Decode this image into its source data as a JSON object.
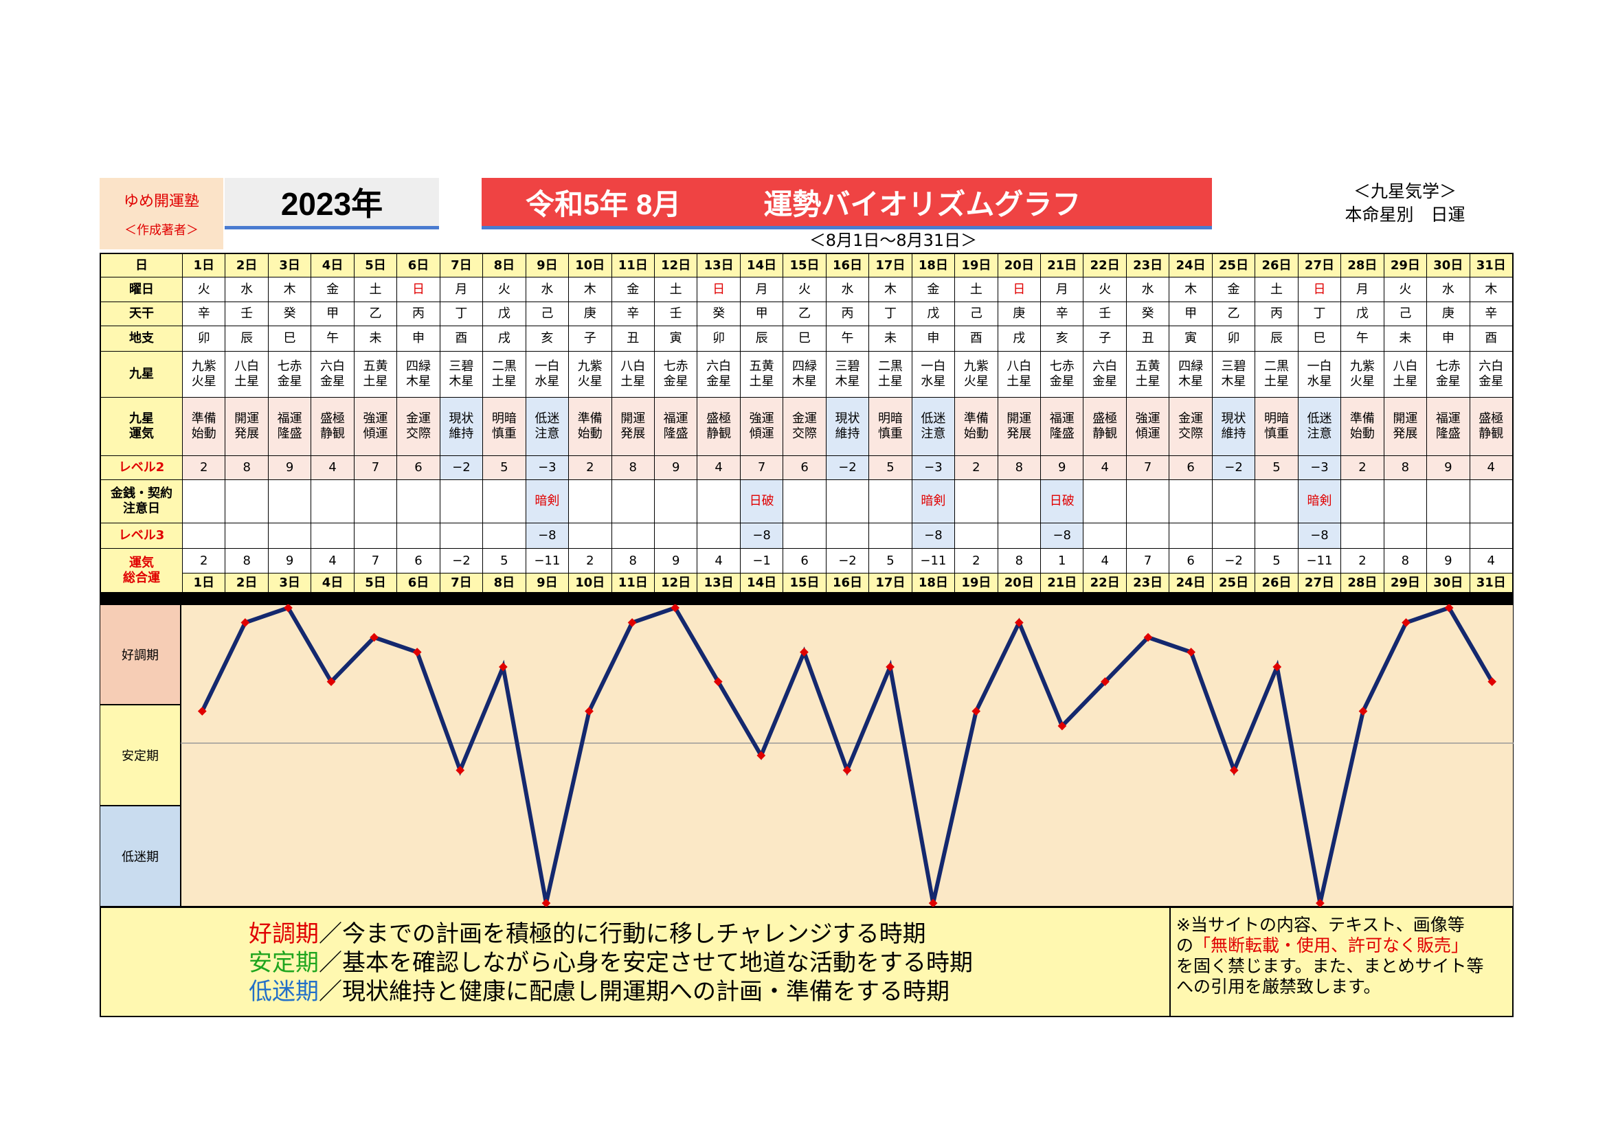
{
  "author": {
    "name": "ゆめ開運塾",
    "role": "＜作成著者＞"
  },
  "year": "2023年",
  "title": {
    "era": "令和5年 8月",
    "main": "運勢バイオリズムグラフ"
  },
  "range": "＜8月1日〜8月31日＞",
  "topright": {
    "line1": "＜九星気学＞",
    "line2": "本命星別　日運"
  },
  "labels": {
    "day": "日",
    "weekday": "曜日",
    "tenkan": "天干",
    "chishi": "地支",
    "kyusei": "九星",
    "unki": "九星<br>運気",
    "level2": "レベル2",
    "money": "金銭・契約<br>注意日",
    "level3": "レベル3",
    "total": "運気<br>総合運"
  },
  "days": [
    "1日",
    "2日",
    "3日",
    "4日",
    "5日",
    "6日",
    "7日",
    "8日",
    "9日",
    "10日",
    "11日",
    "12日",
    "13日",
    "14日",
    "15日",
    "16日",
    "17日",
    "18日",
    "19日",
    "20日",
    "21日",
    "22日",
    "23日",
    "24日",
    "25日",
    "26日",
    "27日",
    "28日",
    "29日",
    "30日",
    "31日"
  ],
  "weekdays": [
    "火",
    "水",
    "木",
    "金",
    "土",
    "日",
    "月",
    "火",
    "水",
    "木",
    "金",
    "土",
    "日",
    "月",
    "火",
    "水",
    "木",
    "金",
    "土",
    "日",
    "月",
    "火",
    "水",
    "木",
    "金",
    "土",
    "日",
    "月",
    "火",
    "水",
    "木"
  ],
  "tenkan": [
    "辛",
    "壬",
    "癸",
    "甲",
    "乙",
    "丙",
    "丁",
    "戊",
    "己",
    "庚",
    "辛",
    "壬",
    "癸",
    "甲",
    "乙",
    "丙",
    "丁",
    "戊",
    "己",
    "庚",
    "辛",
    "壬",
    "癸",
    "甲",
    "乙",
    "丙",
    "丁",
    "戊",
    "己",
    "庚",
    "辛"
  ],
  "chishi": [
    "卯",
    "辰",
    "巳",
    "午",
    "未",
    "申",
    "酉",
    "戌",
    "亥",
    "子",
    "丑",
    "寅",
    "卯",
    "辰",
    "巳",
    "午",
    "未",
    "申",
    "酉",
    "戌",
    "亥",
    "子",
    "丑",
    "寅",
    "卯",
    "辰",
    "巳",
    "午",
    "未",
    "申",
    "酉"
  ],
  "kyusei": [
    "九紫|火星",
    "八白|土星",
    "七赤|金星",
    "六白|金星",
    "五黄|土星",
    "四緑|木星",
    "三碧|木星",
    "二黒|土星",
    "一白|水星",
    "九紫|火星",
    "八白|土星",
    "七赤|金星",
    "六白|金星",
    "五黄|土星",
    "四緑|木星",
    "三碧|木星",
    "二黒|土星",
    "一白|水星",
    "九紫|火星",
    "八白|土星",
    "七赤|金星",
    "六白|金星",
    "五黄|土星",
    "四緑|木星",
    "三碧|木星",
    "二黒|土星",
    "一白|水星",
    "九紫|火星",
    "八白|土星",
    "七赤|金星",
    "六白|金星"
  ],
  "unki": [
    "準備|始動",
    "開運|発展",
    "福運|隆盛",
    "盛極|静観",
    "強運|傾運",
    "金運|交際",
    "現状|維持",
    "明暗|慎重",
    "低迷|注意",
    "準備|始動",
    "開運|発展",
    "福運|隆盛",
    "盛極|静観",
    "強運|傾運",
    "金運|交際",
    "現状|維持",
    "明暗|慎重",
    "低迷|注意",
    "準備|始動",
    "開運|発展",
    "福運|隆盛",
    "盛極|静観",
    "強運|傾運",
    "金運|交際",
    "現状|維持",
    "明暗|慎重",
    "低迷|注意",
    "準備|始動",
    "開運|発展",
    "福運|隆盛",
    "盛極|静観"
  ],
  "level2": [
    "2",
    "8",
    "9",
    "4",
    "7",
    "6",
    "−2",
    "5",
    "−3",
    "2",
    "8",
    "9",
    "4",
    "7",
    "6",
    "−2",
    "5",
    "−3",
    "2",
    "8",
    "9",
    "4",
    "7",
    "6",
    "−2",
    "5",
    "−3",
    "2",
    "8",
    "9",
    "4"
  ],
  "money": [
    "",
    "",
    "",
    "",
    "",
    "",
    "",
    "",
    "暗剣",
    "",
    "",
    "",
    "",
    "日破",
    "",
    "",
    "",
    "暗剣",
    "",
    "",
    "日破",
    "",
    "",
    "",
    "",
    "",
    "暗剣",
    "",
    "",
    "",
    ""
  ],
  "level3": [
    "",
    "",
    "",
    "",
    "",
    "",
    "",
    "",
    "−8",
    "",
    "",
    "",
    "",
    "−8",
    "",
    "",
    "",
    "−8",
    "",
    "",
    "−8",
    "",
    "",
    "",
    "",
    "",
    "−8",
    "",
    "",
    "",
    ""
  ],
  "total": [
    "2",
    "8",
    "9",
    "4",
    "7",
    "6",
    "−2",
    "5",
    "−11",
    "2",
    "8",
    "9",
    "4",
    "−1",
    "6",
    "−2",
    "5",
    "−11",
    "2",
    "8",
    "1",
    "4",
    "7",
    "6",
    "−2",
    "5",
    "−11",
    "2",
    "8",
    "9",
    "4"
  ],
  "chart_data": {
    "type": "line",
    "categories": [
      "1日",
      "2日",
      "3日",
      "4日",
      "5日",
      "6日",
      "7日",
      "8日",
      "9日",
      "10日",
      "11日",
      "12日",
      "13日",
      "14日",
      "15日",
      "16日",
      "17日",
      "18日",
      "19日",
      "20日",
      "21日",
      "22日",
      "23日",
      "24日",
      "25日",
      "26日",
      "27日",
      "28日",
      "29日",
      "30日",
      "31日"
    ],
    "values": [
      2,
      8,
      9,
      4,
      7,
      6,
      -2,
      5,
      -11,
      2,
      8,
      9,
      4,
      -1,
      6,
      -2,
      5,
      -11,
      2,
      8,
      1,
      4,
      7,
      6,
      -2,
      5,
      -11,
      2,
      8,
      9,
      4
    ],
    "ylim": [
      -11,
      9
    ],
    "zones": [
      "好調期",
      "安定期",
      "低迷期"
    ],
    "colors": {
      "line": "#14286e",
      "marker": "#e00000",
      "good": "#f6cdb5",
      "stable": "#fff8b0",
      "low": "#c9dcef",
      "bg": "#fbe8c6"
    }
  },
  "legend": {
    "good_term": "好調期",
    "good_text": "／今までの計画を積極的に行動に移しチャレンジする時期",
    "stable_term": "安定期",
    "stable_text": "／基本を確認しながら心身を安定させて地道な活動をする時期",
    "low_term": "低迷期",
    "low_text": "／現状維持と健康に配慮し開運期への計画・準備をする時期",
    "good_color": "#e00000",
    "stable_color": "#1ea51e",
    "low_color": "#2270c8"
  },
  "note": {
    "line1": "※当サイトの内容、テキスト、画像等",
    "pre": "の",
    "red": "「無断転載・使用、許可なく販売」",
    "line3": "を固く禁じます。また、まとめサイト等",
    "line4": "への引用を厳禁致します。"
  }
}
